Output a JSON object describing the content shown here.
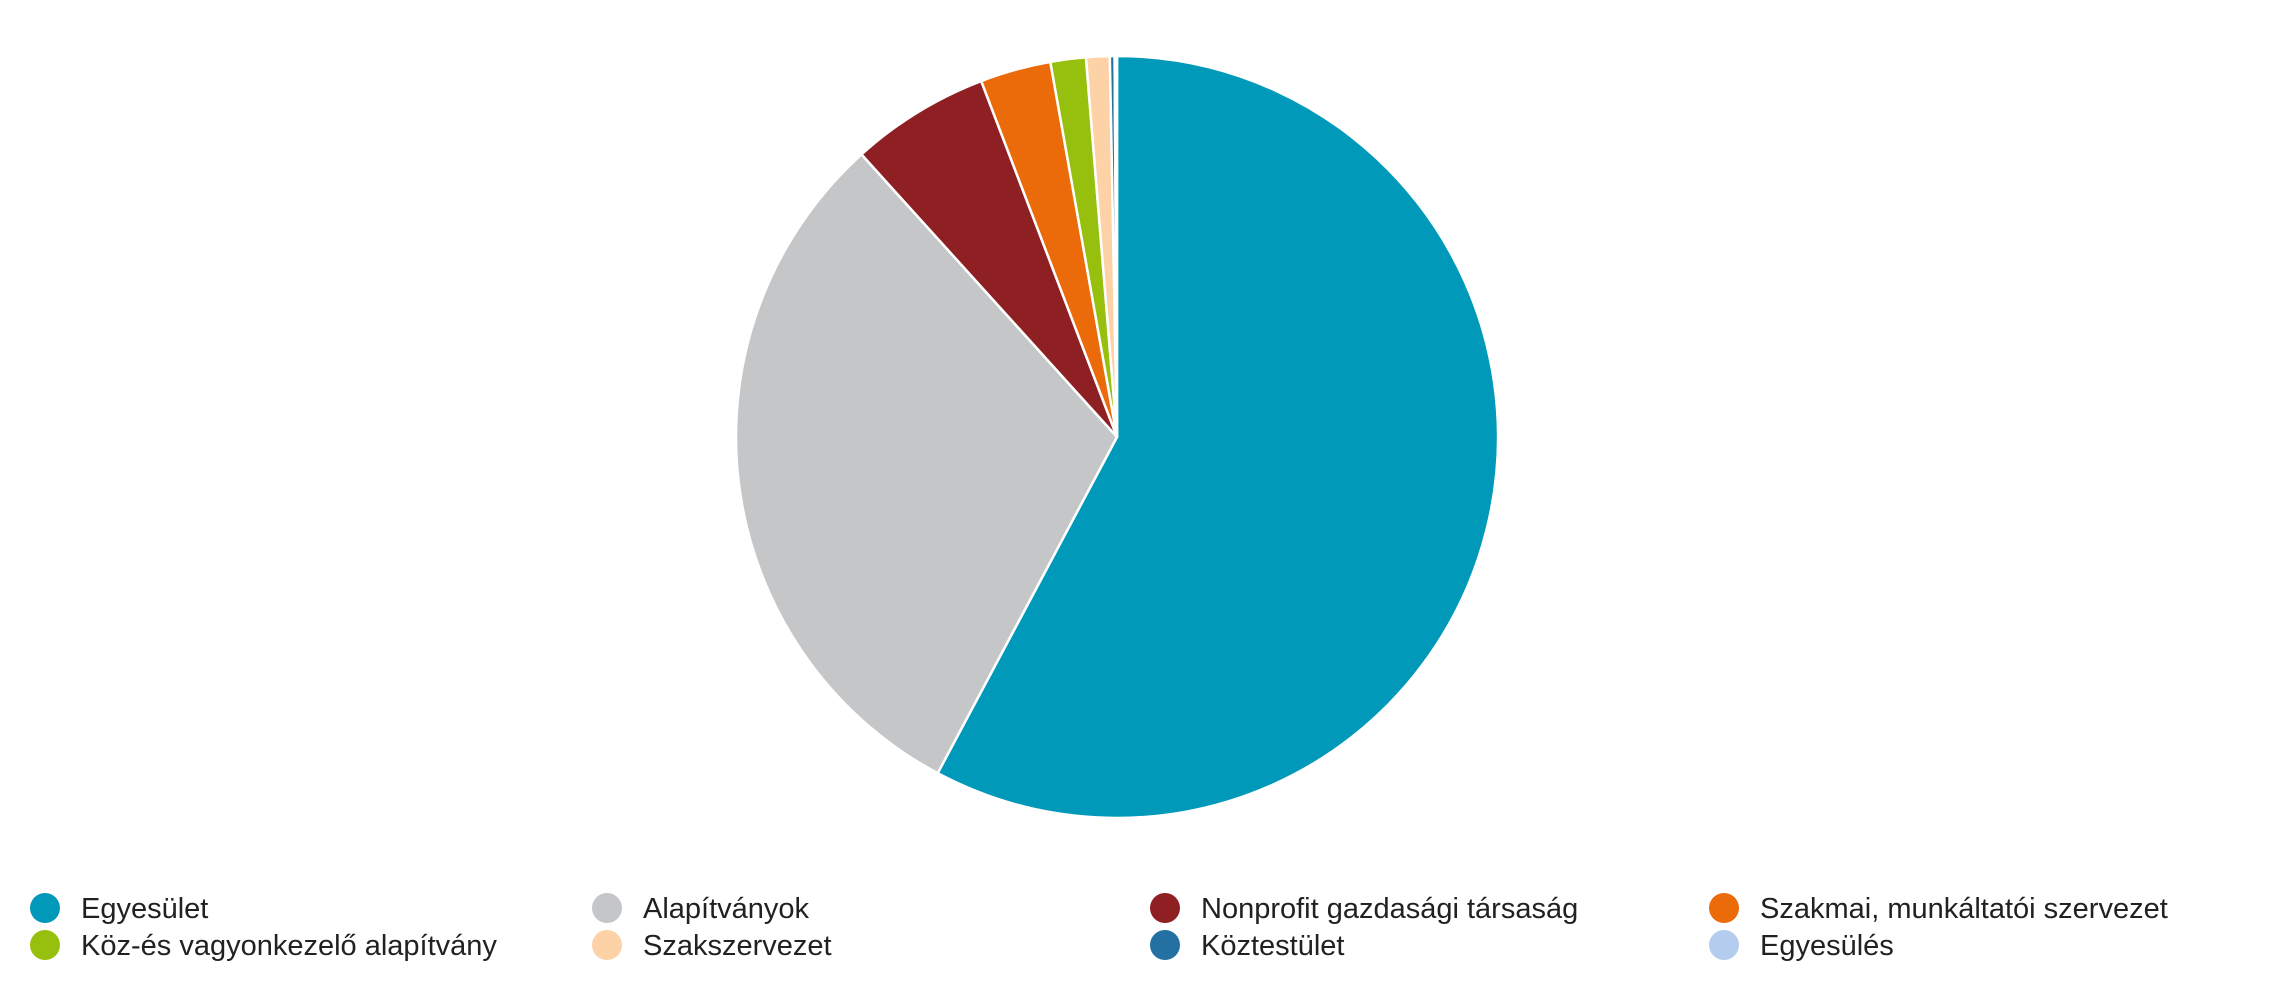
{
  "chart_data": {
    "type": "pie",
    "title": "",
    "series": [
      {
        "name": "",
        "slices": [
          {
            "label": "Egyesület",
            "value": 57.8,
            "color": "#0199b9"
          },
          {
            "label": "Alapítványok",
            "value": 30.5,
            "color": "#c5c6c8"
          },
          {
            "label": "Nonprofit gazdasági társaság",
            "value": 5.9,
            "color": "#8e2024"
          },
          {
            "label": "Szakmai, munkáltatói szervezet",
            "value": 3.0,
            "color": "#eb6a0a"
          },
          {
            "label": "Köz-és vagyonkezelő alapítvány",
            "value": 1.5,
            "color": "#97bf0d"
          },
          {
            "label": "Szakszervezet",
            "value": 1.0,
            "color": "#fdd2a6"
          },
          {
            "label": "Köztestület",
            "value": 0.2,
            "color": "#2371a3"
          },
          {
            "label": "Egyesülés",
            "value": 0.1,
            "color": "#b4cdee"
          }
        ]
      }
    ],
    "legend": {
      "position": "bottom",
      "columns": 4
    }
  }
}
